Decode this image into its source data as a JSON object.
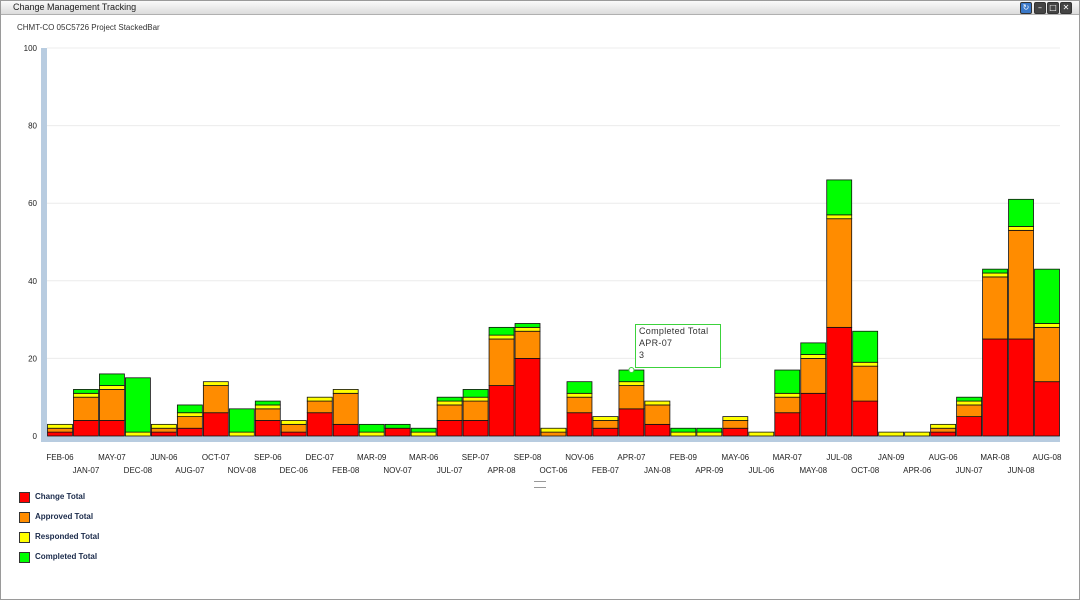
{
  "window": {
    "title": "Change Management Tracking",
    "buttons": [
      "refresh-icon",
      "minimize-icon",
      "maximize-icon",
      "close-icon"
    ]
  },
  "chart_data": {
    "type": "bar",
    "stacked": true,
    "title": "CHMT-CO 05C5726 Project StackedBar",
    "xlabel": "",
    "ylabel": "",
    "ylim": [
      0,
      100
    ],
    "yticks": [
      0,
      20,
      40,
      60,
      80,
      100
    ],
    "grid": true,
    "legend_position": "bottom-left",
    "categories": [
      "FEB-06",
      "JAN-07",
      "MAY-07",
      "DEC-08",
      "JUN-06",
      "AUG-07",
      "OCT-07",
      "NOV-08",
      "SEP-06",
      "DEC-06",
      "DEC-07",
      "FEB-08",
      "MAR-09",
      "NOV-07",
      "MAR-06",
      "JUL-07",
      "SEP-07",
      "APR-08",
      "SEP-08",
      "OCT-06",
      "NOV-06",
      "FEB-07",
      "APR-07",
      "JAN-08",
      "FEB-09",
      "APR-09",
      "MAY-06",
      "JUL-06",
      "MAR-07",
      "MAY-08",
      "JUL-08",
      "OCT-08",
      "JAN-09",
      "APR-06",
      "AUG-06",
      "JUN-07",
      "MAR-08",
      "JUN-08",
      "AUG-08"
    ],
    "series": [
      {
        "name": "Change Total",
        "color": "#ff0000",
        "values": [
          1,
          4,
          4,
          0,
          1,
          2,
          6,
          0,
          4,
          1,
          6,
          3,
          0,
          2,
          0,
          4,
          4,
          13,
          20,
          0,
          6,
          2,
          7,
          3,
          0,
          0,
          2,
          0,
          6,
          11,
          28,
          9,
          0,
          0,
          1,
          5,
          25,
          25,
          14
        ]
      },
      {
        "name": "Approved Total",
        "color": "#ff8c00",
        "values": [
          1,
          6,
          8,
          0,
          1,
          3,
          7,
          0,
          3,
          2,
          3,
          8,
          0,
          0,
          0,
          4,
          5,
          12,
          7,
          1,
          4,
          2,
          6,
          5,
          0,
          0,
          2,
          0,
          4,
          9,
          28,
          9,
          0,
          0,
          1,
          3,
          16,
          28,
          14
        ]
      },
      {
        "name": "Responded Total",
        "color": "#ffff00",
        "values": [
          1,
          1,
          1,
          1,
          1,
          1,
          1,
          1,
          1,
          1,
          1,
          1,
          1,
          0,
          1,
          1,
          1,
          1,
          1,
          1,
          1,
          1,
          1,
          1,
          1,
          1,
          1,
          1,
          1,
          1,
          1,
          1,
          1,
          1,
          1,
          1,
          1,
          1,
          1
        ]
      },
      {
        "name": "Completed Total",
        "color": "#00ff00",
        "values": [
          0,
          1,
          3,
          14,
          0,
          2,
          0,
          6,
          1,
          0,
          0,
          0,
          2,
          1,
          1,
          1,
          2,
          2,
          1,
          0,
          3,
          0,
          3,
          0,
          1,
          1,
          0,
          0,
          6,
          3,
          9,
          8,
          0,
          0,
          0,
          1,
          1,
          7,
          14
        ]
      }
    ]
  },
  "tooltip": {
    "series": "Completed Total",
    "category": "APR-07",
    "value": "3",
    "category_index": 22
  }
}
